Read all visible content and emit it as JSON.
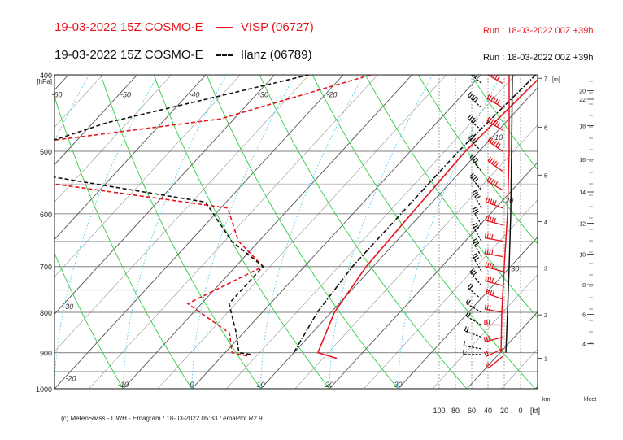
{
  "header": {
    "line1": {
      "valid": "19-03-2022 15Z COSMO-E",
      "station": "VISP (06727)",
      "run": "Run : 18-03-2022 00Z +39h"
    },
    "line2": {
      "valid": "19-03-2022 15Z COSMO-E",
      "station": "Ilanz (06789)",
      "run": "Run : 18-03-2022 00Z +39h"
    }
  },
  "colors": {
    "visp": "#e8141b",
    "ilanz": "#111111",
    "dry_adiabat": "#2ecc40",
    "mixing_ratio": "#66ccee",
    "grid": "#444444"
  },
  "chart_data": {
    "type": "line",
    "title": "Emagram",
    "pressure_unit": "[hPa]",
    "pressure_ticks": [
      400,
      500,
      600,
      700,
      800,
      900,
      1000
    ],
    "pressure_range": [
      400,
      1000
    ],
    "temperature_labels": [
      {
        "t": -60,
        "p": 415,
        "label": "-60"
      },
      {
        "t": -50,
        "p": 415,
        "label": "-50"
      },
      {
        "t": -40,
        "p": 415,
        "label": "-40"
      },
      {
        "t": -30,
        "p": 415,
        "label": "-30"
      },
      {
        "t": -20,
        "p": 415,
        "label": "-20"
      },
      {
        "t": -60,
        "p": 433,
        "label": "-60"
      },
      {
        "t": -50,
        "p": 523,
        "label": "-50"
      },
      {
        "t": -40,
        "p": 648,
        "label": "-40"
      },
      {
        "t": -30,
        "p": 770,
        "label": "-30"
      },
      {
        "t": -20,
        "p": 950,
        "label": "-20"
      },
      {
        "t": -10,
        "p": 1000,
        "label": "-10"
      },
      {
        "t": 0,
        "p": 1000,
        "label": "0"
      },
      {
        "t": 10,
        "p": 1000,
        "label": "10"
      },
      {
        "t": 20,
        "p": 1000,
        "label": "20"
      },
      {
        "t": 30,
        "p": 1000,
        "label": "30"
      },
      {
        "t": 10,
        "p": 470,
        "label": "10"
      },
      {
        "t": 20,
        "p": 565,
        "label": "20"
      },
      {
        "t": 30,
        "p": 690,
        "label": "30"
      }
    ],
    "height_km_label": "[m]",
    "height_km_ticks": [
      1,
      2,
      3,
      4,
      5,
      6,
      7
    ],
    "height_kfeet_ticks": [
      4,
      6,
      8,
      10,
      12,
      14,
      16,
      18,
      20,
      22
    ],
    "wind_axis_label": "[kt]",
    "wind_axis_ticks": [
      100,
      80,
      60,
      40,
      20,
      0
    ],
    "unit_km": "km",
    "unit_kfeet": "kfeet",
    "series": [
      {
        "name": "VISP (06727) temperature",
        "style": "solid",
        "color": "#e8141b",
        "points": [
          [
            9,
            400
          ],
          [
            8,
            500
          ],
          [
            8.5,
            600
          ],
          [
            9,
            700
          ],
          [
            10.5,
            800
          ],
          [
            13.5,
            900
          ],
          [
            17,
            915
          ]
        ]
      },
      {
        "name": "VISP (06727) dewpoint",
        "style": "dashed",
        "color": "#e8141b",
        "points": [
          [
            -16,
            400
          ],
          [
            -32,
            455
          ],
          [
            -68,
            505
          ],
          [
            -55,
            540
          ],
          [
            -19,
            590
          ],
          [
            -13,
            650
          ],
          [
            -6,
            700
          ],
          [
            -12,
            780
          ],
          [
            -2,
            850
          ],
          [
            1,
            900
          ],
          [
            4,
            910
          ]
        ]
      },
      {
        "name": "Ilanz (06789) temperature",
        "style": "dashdot",
        "color": "#111111",
        "points": [
          [
            8,
            400
          ],
          [
            7,
            500
          ],
          [
            7,
            600
          ],
          [
            7,
            700
          ],
          [
            8,
            800
          ],
          [
            10,
            900
          ]
        ]
      },
      {
        "name": "Ilanz (06789) dewpoint",
        "style": "dashed",
        "color": "#111111",
        "points": [
          [
            -25,
            400
          ],
          [
            -48,
            460
          ],
          [
            -61,
            520
          ],
          [
            -23,
            580
          ],
          [
            -14,
            650
          ],
          [
            -6,
            700
          ],
          [
            -6,
            780
          ],
          [
            -1,
            850
          ],
          [
            2,
            900
          ],
          [
            4,
            905
          ]
        ]
      }
    ],
    "wind_speed_profiles": [
      {
        "name": "VISP",
        "color": "#e8141b",
        "points": [
          [
            14,
            400
          ],
          [
            14,
            500
          ],
          [
            16,
            600
          ],
          [
            20,
            700
          ],
          [
            23,
            800
          ],
          [
            24,
            900
          ]
        ]
      },
      {
        "name": "Ilanz",
        "color": "#111111",
        "points": [
          [
            10,
            400
          ],
          [
            11,
            500
          ],
          [
            12,
            600
          ],
          [
            14,
            700
          ],
          [
            16,
            800
          ],
          [
            18,
            900
          ]
        ]
      }
    ],
    "wind_barbs": [
      {
        "series": "VISP",
        "p": 410,
        "dir": 300,
        "kt": 60
      },
      {
        "series": "VISP",
        "p": 440,
        "dir": 300,
        "kt": 60
      },
      {
        "series": "VISP",
        "p": 470,
        "dir": 300,
        "kt": 55
      },
      {
        "series": "VISP",
        "p": 500,
        "dir": 305,
        "kt": 55
      },
      {
        "series": "VISP",
        "p": 530,
        "dir": 305,
        "kt": 50
      },
      {
        "series": "VISP",
        "p": 560,
        "dir": 300,
        "kt": 50
      },
      {
        "series": "VISP",
        "p": 590,
        "dir": 290,
        "kt": 45
      },
      {
        "series": "VISP",
        "p": 620,
        "dir": 285,
        "kt": 45
      },
      {
        "series": "VISP",
        "p": 650,
        "dir": 280,
        "kt": 40
      },
      {
        "series": "VISP",
        "p": 680,
        "dir": 280,
        "kt": 40
      },
      {
        "series": "VISP",
        "p": 710,
        "dir": 285,
        "kt": 40
      },
      {
        "series": "VISP",
        "p": 740,
        "dir": 285,
        "kt": 35
      },
      {
        "series": "VISP",
        "p": 770,
        "dir": 290,
        "kt": 35
      },
      {
        "series": "VISP",
        "p": 800,
        "dir": 280,
        "kt": 30
      },
      {
        "series": "VISP",
        "p": 830,
        "dir": 270,
        "kt": 30
      },
      {
        "series": "VISP",
        "p": 860,
        "dir": 255,
        "kt": 25
      },
      {
        "series": "VISP",
        "p": 890,
        "dir": 245,
        "kt": 20
      },
      {
        "series": "VISP",
        "p": 910,
        "dir": 230,
        "kt": 15
      },
      {
        "series": "Ilanz",
        "p": 410,
        "dir": 310,
        "kt": 45
      },
      {
        "series": "Ilanz",
        "p": 440,
        "dir": 310,
        "kt": 45
      },
      {
        "series": "Ilanz",
        "p": 470,
        "dir": 310,
        "kt": 40
      },
      {
        "series": "Ilanz",
        "p": 500,
        "dir": 315,
        "kt": 40
      },
      {
        "series": "Ilanz",
        "p": 530,
        "dir": 320,
        "kt": 40
      },
      {
        "series": "Ilanz",
        "p": 560,
        "dir": 320,
        "kt": 35
      },
      {
        "series": "Ilanz",
        "p": 590,
        "dir": 330,
        "kt": 35
      },
      {
        "series": "Ilanz",
        "p": 620,
        "dir": 330,
        "kt": 30
      },
      {
        "series": "Ilanz",
        "p": 650,
        "dir": 330,
        "kt": 30
      },
      {
        "series": "Ilanz",
        "p": 680,
        "dir": 330,
        "kt": 30
      },
      {
        "series": "Ilanz",
        "p": 710,
        "dir": 330,
        "kt": 25
      },
      {
        "series": "Ilanz",
        "p": 740,
        "dir": 320,
        "kt": 25
      },
      {
        "series": "Ilanz",
        "p": 770,
        "dir": 310,
        "kt": 20
      },
      {
        "series": "Ilanz",
        "p": 800,
        "dir": 300,
        "kt": 20
      },
      {
        "series": "Ilanz",
        "p": 830,
        "dir": 300,
        "kt": 15
      },
      {
        "series": "Ilanz",
        "p": 860,
        "dir": 290,
        "kt": 15
      },
      {
        "series": "Ilanz",
        "p": 890,
        "dir": 280,
        "kt": 10
      },
      {
        "series": "Ilanz",
        "p": 905,
        "dir": 270,
        "kt": 10
      }
    ]
  },
  "footer": "(c) MeteoSwiss - DWH - Emagram / 18-03-2022  05:33 / emaPlot R2.9"
}
